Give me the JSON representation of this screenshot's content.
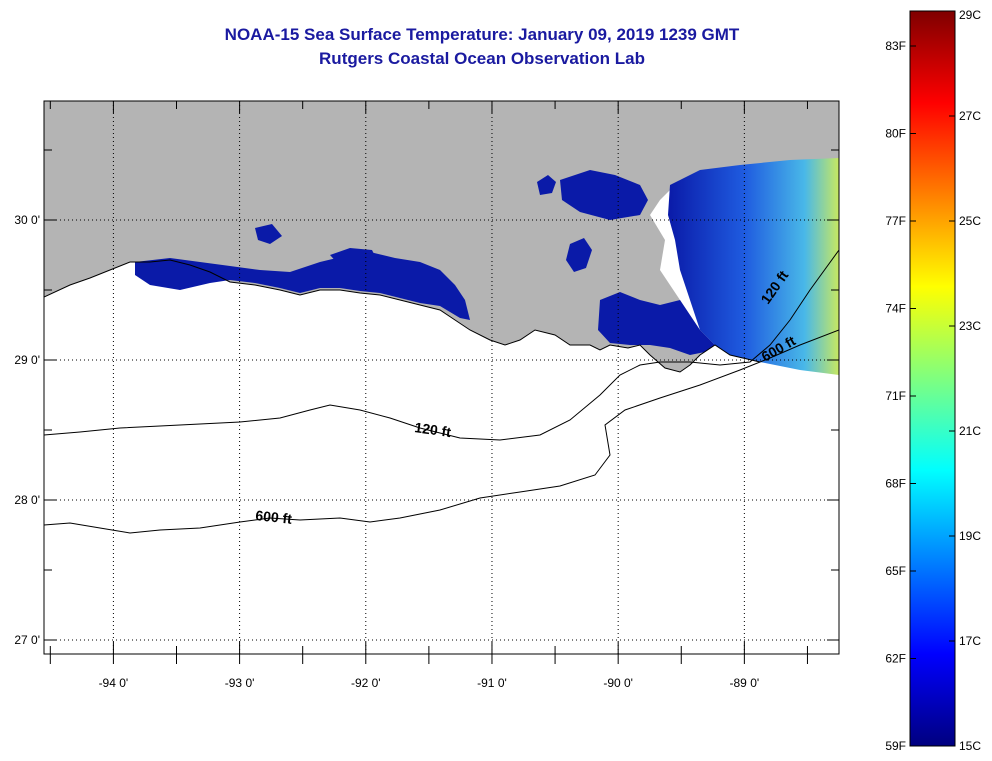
{
  "title": {
    "line1": "NOAA-15 Sea Surface Temperature:  January 09, 2019 1239 GMT",
    "line2": "Rutgers Coastal Ocean Observation Lab"
  },
  "map": {
    "lon_range": [
      -94.55,
      -88.25
    ],
    "lat_range": [
      26.9,
      30.85
    ],
    "x_ticks": [
      {
        "value": -94,
        "label": "-94 0'"
      },
      {
        "value": -93,
        "label": "-93 0'"
      },
      {
        "value": -92,
        "label": "-92 0'"
      },
      {
        "value": -91,
        "label": "-91 0'"
      },
      {
        "value": -90,
        "label": "-90 0'"
      },
      {
        "value": -89,
        "label": "-89 0'"
      }
    ],
    "y_ticks": [
      {
        "value": 30,
        "label": "30 0'"
      },
      {
        "value": 29,
        "label": "29 0'"
      },
      {
        "value": 28,
        "label": "28 0'"
      },
      {
        "value": 27,
        "label": "27 0'"
      }
    ],
    "contours": [
      {
        "label": "120 ft"
      },
      {
        "label": "600 ft"
      }
    ],
    "colors": {
      "land": "#b4b4b4",
      "cold_water": "#0a1aa8",
      "ocean": "#ffffff",
      "grid": "#000000"
    }
  },
  "colorbar": {
    "range_c": [
      15,
      29
    ],
    "fahrenheit_labels": [
      "83F",
      "80F",
      "77F",
      "74F",
      "71F",
      "68F",
      "65F",
      "62F",
      "59F"
    ],
    "celsius_labels": [
      "29C",
      "27C",
      "25C",
      "23C",
      "21C",
      "19C",
      "17C",
      "15C"
    ],
    "colors": [
      "#00007f",
      "#0000ff",
      "#007fff",
      "#00ffff",
      "#7fff7f",
      "#ffff00",
      "#ff7f00",
      "#ff0000",
      "#7f0000"
    ]
  }
}
